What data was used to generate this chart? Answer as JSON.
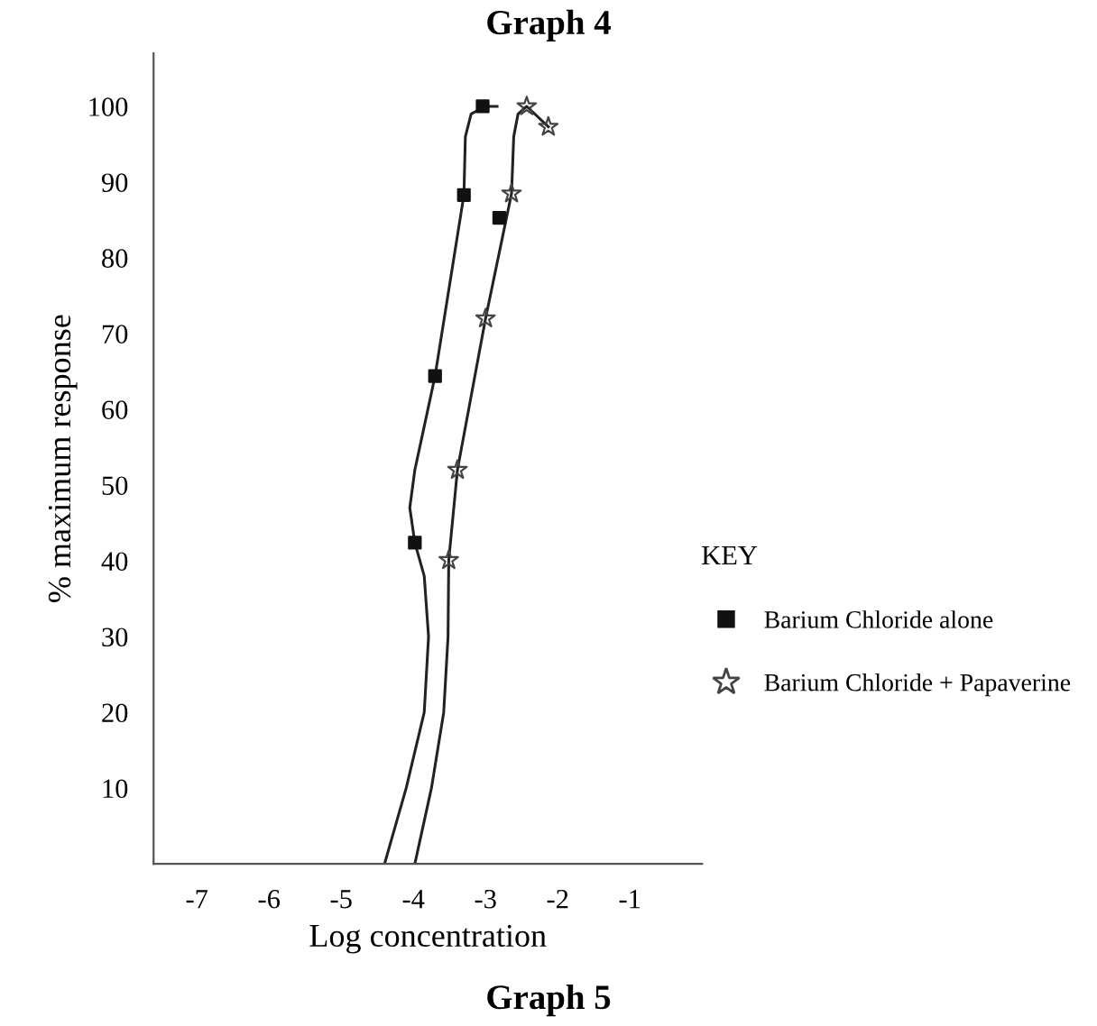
{
  "chart_data": {
    "type": "scatter",
    "title": "Graph 4",
    "xlabel": "Log concentration",
    "ylabel": "% maximum response",
    "legend_title": "KEY",
    "annotations": [
      "Graph 5"
    ],
    "xlim": [
      -7.6,
      0
    ],
    "xticks": [
      -7,
      -6,
      -5,
      -4,
      -3,
      -2,
      -1
    ],
    "ylim": [
      0,
      107
    ],
    "yticks": [
      10,
      20,
      30,
      40,
      50,
      60,
      70,
      80,
      90,
      100
    ],
    "grid": false,
    "legend": "right",
    "series": [
      {
        "type": "line",
        "color": "#222222",
        "marker": "none",
        "x": [
          -4.4,
          -4.1,
          -3.85,
          -3.79,
          -3.85,
          -3.98,
          -4.05,
          -3.98,
          -3.7,
          -3.3,
          -3.28,
          -3.2,
          -3.0,
          -2.84
        ],
        "values": [
          0,
          10,
          20,
          30,
          38,
          42.4,
          47,
          52,
          64.4,
          88.3,
          96,
          99,
          100,
          100
        ]
      },
      {
        "type": "line",
        "color": "#222222",
        "marker": "none",
        "x": [
          -3.98,
          -3.75,
          -3.58,
          -3.52,
          -3.51,
          -3.39,
          -3.0,
          -2.64,
          -2.61,
          -2.55,
          -2.43,
          -2.13
        ],
        "values": [
          0,
          10,
          20,
          30,
          40.1,
          52,
          72,
          88.5,
          96,
          99,
          100,
          97.3
        ]
      },
      {
        "name": "Barium Chloride alone",
        "color": "#111111",
        "marker": "square",
        "x": [
          -3.04,
          -3.3,
          -3.7,
          -3.98,
          -2.81
        ],
        "values": [
          100,
          88.3,
          64.4,
          42.4,
          85.3
        ]
      },
      {
        "name": "Barium Chloride + Papaverine",
        "color": "#444444",
        "marker": "star",
        "x": [
          -2.43,
          -2.13,
          -2.64,
          -3.0,
          -3.39,
          -3.51
        ],
        "values": [
          100,
          97.3,
          88.5,
          72,
          52,
          40.1
        ]
      }
    ]
  }
}
